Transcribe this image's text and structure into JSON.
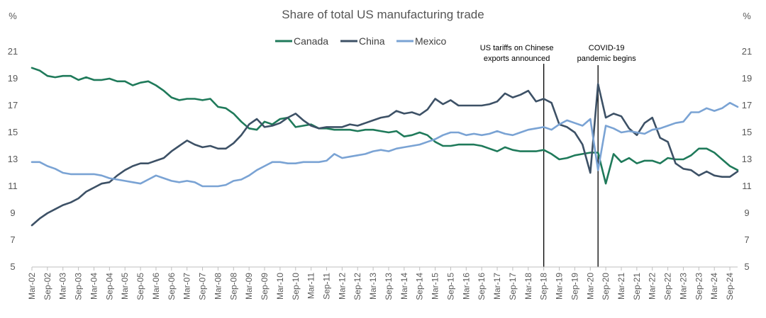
{
  "chart_data": {
    "type": "line",
    "title": "Share of total US manufacturing trade",
    "y_unit_left": "%",
    "y_unit_right": "%",
    "ylim": [
      5,
      21
    ],
    "yticks": [
      5,
      7,
      9,
      11,
      13,
      15,
      17,
      19,
      21
    ],
    "grid": false,
    "legend_position": "top",
    "x_start": "Mar-02",
    "x_tick_labels": [
      "Mar-02",
      "Sep-02",
      "Mar-03",
      "Sep-03",
      "Mar-04",
      "Sep-04",
      "Mar-05",
      "Sep-05",
      "Mar-06",
      "Sep-06",
      "Mar-07",
      "Sep-07",
      "Mar-08",
      "Sep-08",
      "Mar-09",
      "Sep-09",
      "Mar-10",
      "Sep-10",
      "Mar-11",
      "Sep-11",
      "Mar-12",
      "Sep-12",
      "Mar-13",
      "Sep-13",
      "Mar-14",
      "Sep-14",
      "Mar-15",
      "Sep-15",
      "Mar-16",
      "Sep-16",
      "Mar-17",
      "Sep-17",
      "Mar-18",
      "Sep-18",
      "Mar-19",
      "Sep-19",
      "Mar-20",
      "Sep-20",
      "Mar-21",
      "Sep-21",
      "Mar-22",
      "Sep-22",
      "Mar-23",
      "Sep-23",
      "Mar-24",
      "Sep-24"
    ],
    "series": [
      {
        "name": "Canada",
        "color": "#1f7a5a",
        "values": [
          19.8,
          19.6,
          19.2,
          19.1,
          19.2,
          19.2,
          18.9,
          19.1,
          18.9,
          18.9,
          19.0,
          18.8,
          18.8,
          18.5,
          18.7,
          18.8,
          18.5,
          18.1,
          17.6,
          17.4,
          17.5,
          17.5,
          17.4,
          17.5,
          16.9,
          16.8,
          16.4,
          15.8,
          15.3,
          15.2,
          15.8,
          15.6,
          16.0,
          16.1,
          15.4,
          15.5,
          15.6,
          15.3,
          15.3,
          15.2,
          15.2,
          15.2,
          15.1,
          15.2,
          15.2,
          15.1,
          15.0,
          15.1,
          14.7,
          14.8,
          15.0,
          14.8,
          14.3,
          14.0,
          14.0,
          14.1,
          14.1,
          14.1,
          14.0,
          13.8,
          13.6,
          13.9,
          13.7,
          13.6,
          13.6,
          13.6,
          13.7,
          13.4,
          13.0,
          13.1,
          13.3,
          13.4,
          13.5,
          13.5,
          11.2,
          13.4,
          12.8,
          13.1,
          12.7,
          12.9,
          12.9,
          12.7,
          13.1,
          13.0,
          13.0,
          13.3,
          13.8,
          13.8,
          13.5,
          13.0,
          12.5,
          12.2
        ]
      },
      {
        "name": "China",
        "color": "#3d5166",
        "values": [
          8.1,
          8.6,
          9.0,
          9.3,
          9.6,
          9.8,
          10.1,
          10.6,
          10.9,
          11.2,
          11.3,
          11.8,
          12.2,
          12.5,
          12.7,
          12.7,
          12.9,
          13.1,
          13.6,
          14.0,
          14.4,
          14.1,
          13.9,
          14.0,
          13.8,
          13.8,
          14.2,
          14.8,
          15.6,
          16.0,
          15.4,
          15.5,
          15.7,
          16.1,
          16.4,
          15.9,
          15.5,
          15.3,
          15.4,
          15.4,
          15.4,
          15.6,
          15.5,
          15.7,
          15.9,
          16.1,
          16.2,
          16.6,
          16.4,
          16.5,
          16.3,
          16.7,
          17.5,
          17.1,
          17.4,
          17.0,
          17.0,
          17.0,
          17.0,
          17.1,
          17.3,
          17.9,
          17.6,
          17.8,
          18.1,
          17.3,
          17.5,
          17.2,
          15.6,
          15.4,
          15.0,
          14.1,
          12.0,
          18.6,
          16.1,
          16.4,
          16.2,
          15.3,
          14.8,
          15.7,
          16.1,
          14.6,
          14.3,
          12.7,
          12.3,
          12.2,
          11.8,
          12.1,
          11.8,
          11.7,
          11.7,
          12.1
        ]
      },
      {
        "name": "Mexico",
        "color": "#7aa3d4",
        "values": [
          12.8,
          12.8,
          12.5,
          12.3,
          12.0,
          11.9,
          11.9,
          11.9,
          11.9,
          11.8,
          11.6,
          11.5,
          11.4,
          11.3,
          11.2,
          11.5,
          11.8,
          11.6,
          11.4,
          11.3,
          11.4,
          11.3,
          11.0,
          11.0,
          11.0,
          11.1,
          11.4,
          11.5,
          11.8,
          12.2,
          12.5,
          12.8,
          12.8,
          12.7,
          12.7,
          12.8,
          12.8,
          12.8,
          12.9,
          13.4,
          13.1,
          13.2,
          13.3,
          13.4,
          13.6,
          13.7,
          13.6,
          13.8,
          13.9,
          14.0,
          14.1,
          14.3,
          14.5,
          14.8,
          15.0,
          15.0,
          14.8,
          14.9,
          14.8,
          14.9,
          15.1,
          14.9,
          14.8,
          15.0,
          15.2,
          15.3,
          15.4,
          15.2,
          15.6,
          15.9,
          15.7,
          15.5,
          16.0,
          12.2,
          15.5,
          15.3,
          15.0,
          15.1,
          15.0,
          14.9,
          15.2,
          15.3,
          15.5,
          15.7,
          15.8,
          16.5,
          16.5,
          16.8,
          16.6,
          16.8,
          17.2,
          16.9
        ]
      }
    ],
    "annotations": [
      {
        "x_index": 66,
        "lines": [
          "US tariffs on Chinese",
          "exports announced"
        ]
      },
      {
        "x_index": 73,
        "lines": [
          "COVID-19",
          "pandemic begins"
        ]
      }
    ]
  }
}
